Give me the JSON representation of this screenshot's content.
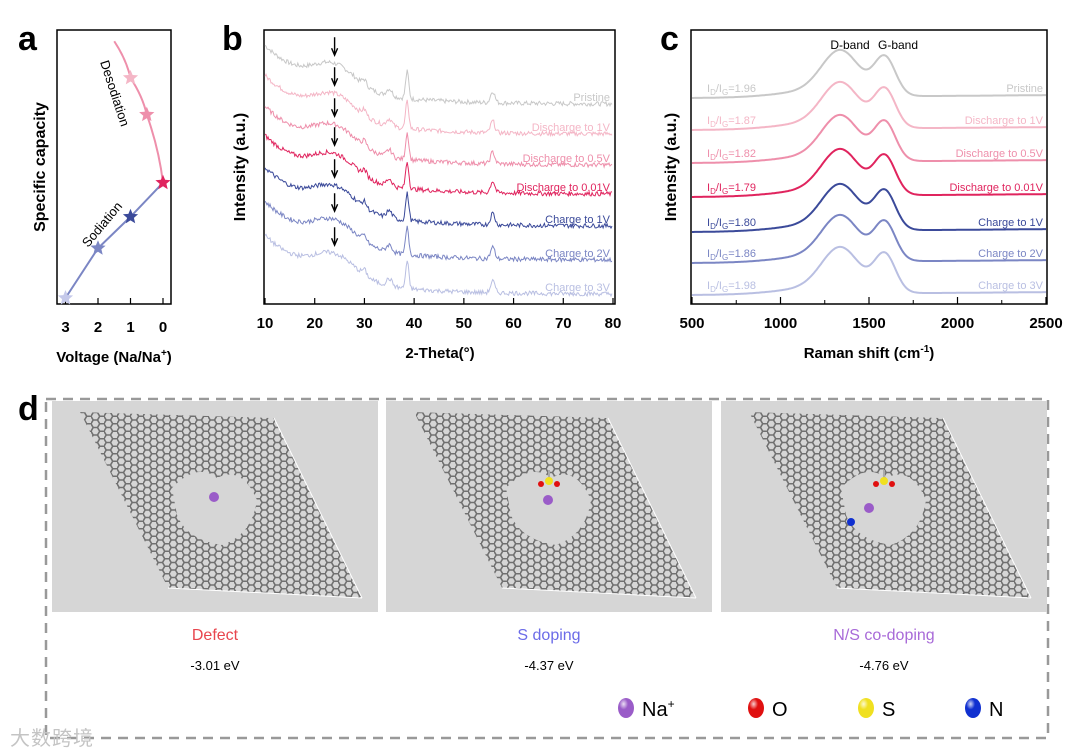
{
  "panel_letters": {
    "a": "a",
    "b": "b",
    "c": "c",
    "d": "d"
  },
  "chart_data": [
    {
      "panel": "a",
      "type": "line",
      "xlabel": "Voltage (Na/Na",
      "xlabel_sup": "+",
      "xlabel_end": ")",
      "ylabel": "Specific capacity",
      "xlim": [
        3.3,
        -0.1
      ],
      "ylim": [
        0,
        1
      ],
      "x_ticks": [
        "3",
        "2",
        "1",
        "0"
      ],
      "x_tick_values": [
        3,
        2,
        1,
        0
      ],
      "annotations": [
        "Desodiation",
        "Sodiation"
      ],
      "series": [
        {
          "name": "Sodiation",
          "color": "#7b86c4",
          "points": [
            [
              3,
              0.0
            ],
            [
              2,
              0.19
            ],
            [
              1,
              0.31
            ],
            [
              0,
              0.44
            ]
          ]
        },
        {
          "name": "Desodiation",
          "color": "#ee8fab",
          "points": [
            [
              0,
              0.44
            ],
            [
              0.5,
              0.7
            ],
            [
              1,
              0.84
            ],
            [
              1.5,
              0.98
            ]
          ]
        }
      ],
      "stars": [
        {
          "v": 3,
          "cap": 0.0,
          "color": "#c5c9ea"
        },
        {
          "v": 2,
          "cap": 0.19,
          "color": "#7b86c4"
        },
        {
          "v": 1,
          "cap": 0.31,
          "color": "#3b4a9a"
        },
        {
          "v": 0,
          "cap": 0.44,
          "color": "#e0245e"
        },
        {
          "v": 0.5,
          "cap": 0.7,
          "color": "#ee8fab"
        },
        {
          "v": 1,
          "cap": 0.84,
          "color": "#f4b6c6"
        }
      ]
    },
    {
      "panel": "b",
      "type": "line",
      "xlabel": "2-Theta(°)",
      "ylabel": "Intensity (a.u.)",
      "xlim": [
        10,
        80
      ],
      "x_ticks": [
        "10",
        "20",
        "30",
        "40",
        "50",
        "60",
        "70",
        "80"
      ],
      "arrow_position_2theta": 24,
      "peaks_2theta": [
        24,
        30,
        35,
        38.6,
        55.8
      ],
      "series": [
        {
          "name": "Pristine",
          "color": "#c8c8c8"
        },
        {
          "name": "Discharge to 1V",
          "color": "#f4b6c6"
        },
        {
          "name": "Discharge to 0.5V",
          "color": "#ee8fab"
        },
        {
          "name": "Discharge to 0.01V",
          "color": "#e0245e"
        },
        {
          "name": "Charge to 1V",
          "color": "#3b4a9a"
        },
        {
          "name": "Charge to 2V",
          "color": "#7b86c4"
        },
        {
          "name": "Charge to 3V",
          "color": "#b9bfe2"
        }
      ]
    },
    {
      "panel": "c",
      "type": "line",
      "xlabel": "Raman shift (cm",
      "xlabel_sup": "-1",
      "xlabel_end": ")",
      "ylabel": "Intensity (a.u.)",
      "xlim": [
        500,
        2500
      ],
      "x_ticks": [
        "500",
        "1000",
        "1500",
        "2000",
        "2500"
      ],
      "band_labels": [
        "D-band",
        "G-band"
      ],
      "bands_cm1": [
        1340,
        1585
      ],
      "ratio_parts": [
        "I",
        "D",
        "/I",
        "G",
        "="
      ],
      "series": [
        {
          "name": "Pristine",
          "color": "#c8c8c8",
          "id_ig": "1.96"
        },
        {
          "name": "Discharge to 1V",
          "color": "#f4b6c6",
          "id_ig": "1.87"
        },
        {
          "name": "Discharge to 0.5V",
          "color": "#ee8fab",
          "id_ig": "1.82"
        },
        {
          "name": "Discharge to 0.01V",
          "color": "#e0245e",
          "id_ig": "1.79"
        },
        {
          "name": "Charge to 1V",
          "color": "#3b4a9a",
          "id_ig": "1.80"
        },
        {
          "name": "Charge to 2V",
          "color": "#7b86c4",
          "id_ig": "1.86"
        },
        {
          "name": "Charge to 3V",
          "color": "#b9bfe2",
          "id_ig": "1.98"
        }
      ]
    }
  ],
  "panel_d": {
    "models": [
      {
        "title": "Defect",
        "color": "#e8464e",
        "energy": "-3.01 eV",
        "dopants": []
      },
      {
        "title": "S doping",
        "color": "#6b6be8",
        "energy": "-4.37 eV",
        "dopants": [
          "S"
        ]
      },
      {
        "title": "N/S co-doping",
        "color": "#a86ad8",
        "energy": "-4.76 eV",
        "dopants": [
          "S",
          "N"
        ]
      }
    ],
    "legend": [
      {
        "label": "Na",
        "sup": "+",
        "color": "#9a5cc8"
      },
      {
        "label": "O",
        "sup": "",
        "color": "#e01010"
      },
      {
        "label": "S",
        "sup": "",
        "color": "#f0e020"
      },
      {
        "label": "N",
        "sup": "",
        "color": "#1030d0"
      }
    ]
  },
  "watermark": "大数跨境"
}
